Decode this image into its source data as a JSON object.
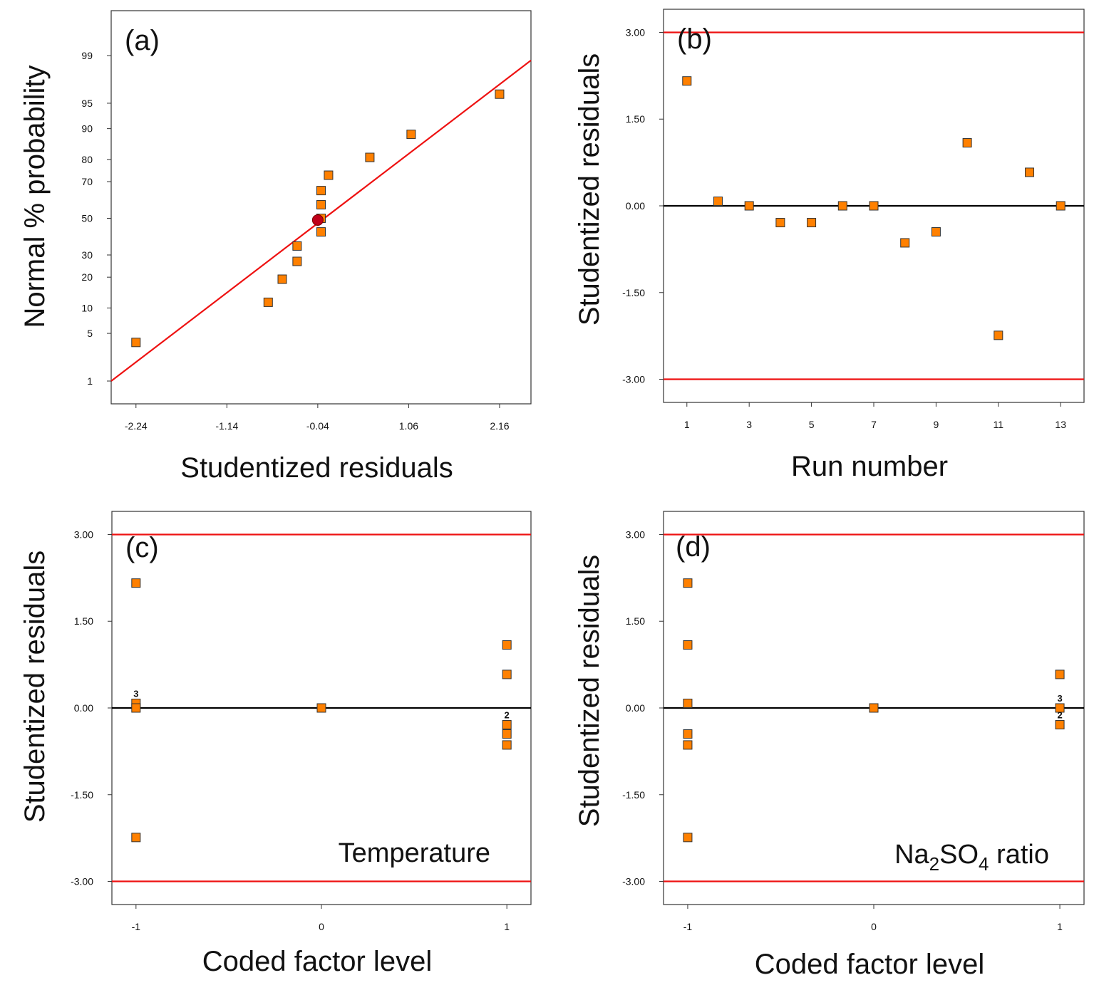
{
  "chart_data": [
    {
      "id": "a",
      "type": "scatter",
      "panel_label": "(a)",
      "xlabel": "Studentized residuals",
      "ylabel": "Normal % probability",
      "xlim": [
        -2.54,
        2.54
      ],
      "ylim": [
        0.4,
        99.85
      ],
      "y_scale": "probability",
      "xticks": [
        -2.24,
        -1.14,
        -0.04,
        1.06,
        2.16
      ],
      "xtick_labels": [
        "-2.24",
        "-1.14",
        "-0.04",
        "1.06",
        "2.16"
      ],
      "yticks": [
        1,
        5,
        10,
        20,
        30,
        50,
        70,
        80,
        90,
        95,
        99
      ],
      "ytick_labels": [
        "1",
        "5",
        "10",
        "20",
        "30",
        "50",
        "70",
        "80",
        "90",
        "95",
        "99"
      ],
      "points": [
        {
          "x": -2.24,
          "y": 3.8
        },
        {
          "x": -0.64,
          "y": 11.5
        },
        {
          "x": -0.47,
          "y": 19.2
        },
        {
          "x": -0.29,
          "y": 26.9
        },
        {
          "x": -0.29,
          "y": 34.6
        },
        {
          "x": 0.0,
          "y": 42.3
        },
        {
          "x": 0.0,
          "y": 50.0
        },
        {
          "x": 0.0,
          "y": 57.7
        },
        {
          "x": 0.0,
          "y": 65.4
        },
        {
          "x": 0.09,
          "y": 73.1
        },
        {
          "x": 0.59,
          "y": 80.8
        },
        {
          "x": 1.09,
          "y": 88.5
        },
        {
          "x": 2.16,
          "y": 96.2
        }
      ],
      "highlight_point": {
        "x": -0.04,
        "y": 49.0
      },
      "reference_line": [
        {
          "x": -2.54,
          "y": 1.0
        },
        {
          "x": 2.54,
          "y": 98.8
        }
      ],
      "colors": {
        "marker": "#ff8000",
        "marker_edge": "#333333",
        "line": "#ee1111",
        "highlight": "#c0001a"
      }
    },
    {
      "id": "b",
      "type": "scatter",
      "panel_label": "(b)",
      "xlabel": "Run number",
      "ylabel": "Studentized residuals",
      "xlim": [
        0.25,
        13.75
      ],
      "ylim": [
        -3.4,
        3.4
      ],
      "xticks": [
        1,
        3,
        5,
        7,
        9,
        11,
        13
      ],
      "xtick_labels": [
        "1",
        "3",
        "5",
        "7",
        "9",
        "11",
        "13"
      ],
      "yticks": [
        -3.0,
        -1.5,
        0.0,
        1.5,
        3.0
      ],
      "ytick_labels": [
        "-3.00",
        "-1.50",
        "0.00",
        "1.50",
        "3.00"
      ],
      "points": [
        {
          "x": 1,
          "y": 2.16
        },
        {
          "x": 2,
          "y": 0.08
        },
        {
          "x": 3,
          "y": 0.0
        },
        {
          "x": 4,
          "y": -0.29
        },
        {
          "x": 5,
          "y": -0.29
        },
        {
          "x": 6,
          "y": 0.0
        },
        {
          "x": 7,
          "y": 0.0
        },
        {
          "x": 8,
          "y": -0.64
        },
        {
          "x": 9,
          "y": -0.45
        },
        {
          "x": 10,
          "y": 1.09
        },
        {
          "x": 11,
          "y": -2.24
        },
        {
          "x": 12,
          "y": 0.58
        },
        {
          "x": 13,
          "y": 0.0
        }
      ],
      "hlines": [
        {
          "y": 3.0,
          "color": "#ee1111"
        },
        {
          "y": 0.0,
          "color": "#000000"
        },
        {
          "y": -3.0,
          "color": "#ee1111"
        }
      ],
      "colors": {
        "marker": "#ff8000",
        "marker_edge": "#333333"
      }
    },
    {
      "id": "c",
      "type": "scatter",
      "panel_label": "(c)",
      "xlabel": "Coded factor level",
      "ylabel": "Studentized residuals",
      "annotation": "Temperature",
      "xlim": [
        -1.13,
        1.13
      ],
      "ylim": [
        -3.4,
        3.4
      ],
      "xticks": [
        -1,
        0,
        1
      ],
      "xtick_labels": [
        "-1",
        "0",
        "1"
      ],
      "yticks": [
        -3.0,
        -1.5,
        0.0,
        1.5,
        3.0
      ],
      "ytick_labels": [
        "-3.00",
        "-1.50",
        "0.00",
        "1.50",
        "3.00"
      ],
      "points": [
        {
          "x": -1,
          "y": 2.16
        },
        {
          "x": -1,
          "y": 0.08
        },
        {
          "x": -1,
          "y": 0.0
        },
        {
          "x": -1,
          "y": -2.24
        },
        {
          "x": 0,
          "y": 0.0
        },
        {
          "x": 1,
          "y": 1.09
        },
        {
          "x": 1,
          "y": 0.58
        },
        {
          "x": 1,
          "y": -0.29
        },
        {
          "x": 1,
          "y": -0.45
        },
        {
          "x": 1,
          "y": -0.64
        }
      ],
      "count_labels": [
        {
          "x": -1,
          "y": 0.08,
          "text": "3"
        },
        {
          "x": 1,
          "y": -0.29,
          "text": "2"
        }
      ],
      "hlines": [
        {
          "y": 3.0,
          "color": "#ee1111"
        },
        {
          "y": 0.0,
          "color": "#000000"
        },
        {
          "y": -3.0,
          "color": "#ee1111"
        }
      ],
      "colors": {
        "marker": "#ff8000",
        "marker_edge": "#333333"
      }
    },
    {
      "id": "d",
      "type": "scatter",
      "panel_label": "(d)",
      "xlabel": "Coded factor level",
      "ylabel": "Studentized residuals",
      "annotation_parts": [
        {
          "text": "Na",
          "shift": "none"
        },
        {
          "text": "2",
          "shift": "sub"
        },
        {
          "text": "SO",
          "shift": "none"
        },
        {
          "text": "4",
          "shift": "sub"
        },
        {
          "text": " ratio",
          "shift": "none"
        }
      ],
      "xlim": [
        -1.13,
        1.13
      ],
      "ylim": [
        -3.4,
        3.4
      ],
      "xticks": [
        -1,
        0,
        1
      ],
      "xtick_labels": [
        "-1",
        "0",
        "1"
      ],
      "yticks": [
        -3.0,
        -1.5,
        0.0,
        1.5,
        3.0
      ],
      "ytick_labels": [
        "-3.00",
        "-1.50",
        "0.00",
        "1.50",
        "3.00"
      ],
      "points": [
        {
          "x": -1,
          "y": 2.16
        },
        {
          "x": -1,
          "y": 1.09
        },
        {
          "x": -1,
          "y": 0.08
        },
        {
          "x": -1,
          "y": -0.45
        },
        {
          "x": -1,
          "y": -0.64
        },
        {
          "x": -1,
          "y": -2.24
        },
        {
          "x": 0,
          "y": 0.0
        },
        {
          "x": 1,
          "y": 0.58
        },
        {
          "x": 1,
          "y": 0.0
        },
        {
          "x": 1,
          "y": -0.29
        }
      ],
      "count_labels": [
        {
          "x": 1,
          "y": 0.0,
          "text": "3",
          "pos": "above"
        },
        {
          "x": 1,
          "y": -0.29,
          "text": "2",
          "pos": "above"
        }
      ],
      "hlines": [
        {
          "y": 3.0,
          "color": "#ee1111"
        },
        {
          "y": 0.0,
          "color": "#000000"
        },
        {
          "y": -3.0,
          "color": "#ee1111"
        }
      ],
      "colors": {
        "marker": "#ff8000",
        "marker_edge": "#333333"
      }
    }
  ]
}
